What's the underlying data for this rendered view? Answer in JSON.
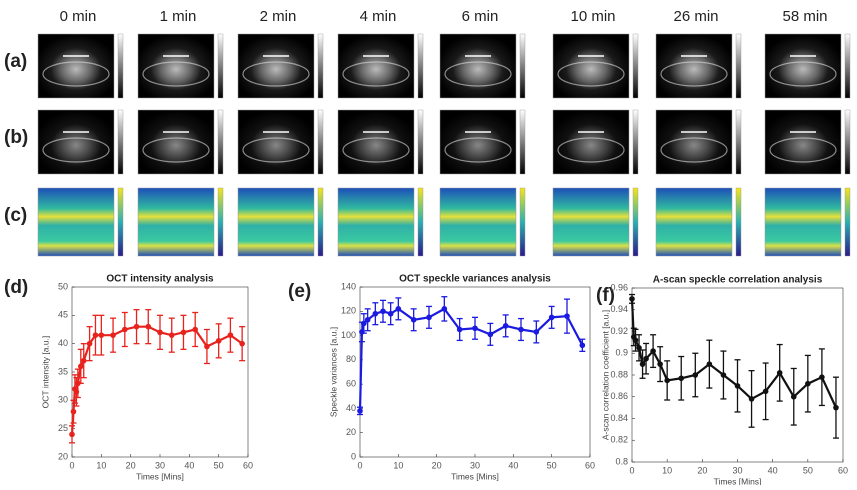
{
  "time_labels": [
    "0 min",
    "1 min",
    "2 min",
    "4 min",
    "6 min",
    "10 min",
    "26 min",
    "58 min"
  ],
  "panel_labels": [
    "(a)",
    "(b)",
    "(c)"
  ],
  "chart_data": [
    {
      "type": "line",
      "panel_label": "(d)",
      "title": "OCT intensity analysis",
      "xlabel": "Times [Mins]",
      "ylabel": "OCT intensity [a.u.]",
      "color": "#e8221c",
      "x": [
        0,
        0.5,
        1,
        1.5,
        2,
        3,
        4,
        6,
        8,
        10,
        14,
        18,
        22,
        26,
        30,
        34,
        38,
        42,
        46,
        50,
        54,
        58
      ],
      "values": [
        24,
        28,
        32,
        31.5,
        33,
        36,
        37,
        40,
        41.5,
        41.5,
        41.5,
        42.5,
        43,
        43,
        42,
        41.5,
        42,
        42.5,
        39.5,
        40.5,
        41.5,
        40
      ],
      "errors": [
        1.5,
        2,
        2.5,
        2.5,
        2.5,
        3,
        3,
        3,
        3.5,
        3.5,
        3,
        3,
        3,
        3,
        3,
        3,
        3,
        3,
        3,
        3,
        3,
        3
      ],
      "xlim": [
        0,
        60
      ],
      "xticks": [
        0,
        10,
        20,
        30,
        40,
        50,
        60
      ],
      "ylim": [
        20,
        50
      ],
      "yticks": [
        20,
        25,
        30,
        35,
        40,
        45,
        50
      ]
    },
    {
      "type": "line",
      "panel_label": "(e)",
      "title": "OCT speckle variances analysis",
      "xlabel": "Times [Mins]",
      "ylabel": "Speckle variances [a.u.]",
      "color": "#1a1ae0",
      "x": [
        0,
        0.5,
        1,
        2,
        4,
        6,
        8,
        10,
        14,
        18,
        22,
        26,
        30,
        34,
        38,
        42,
        46,
        50,
        54,
        58
      ],
      "values": [
        38,
        103,
        110,
        113,
        118,
        120,
        118,
        122,
        113,
        115,
        122,
        105,
        106,
        101,
        108,
        105,
        103,
        115,
        116,
        92
      ],
      "errors": [
        3,
        8,
        8,
        9,
        9,
        9,
        9,
        9,
        9,
        9,
        10,
        9,
        9,
        9,
        9,
        9,
        9,
        9,
        14,
        5
      ],
      "xlim": [
        0,
        60
      ],
      "xticks": [
        0,
        10,
        20,
        30,
        40,
        50,
        60
      ],
      "ylim": [
        0,
        140
      ],
      "yticks": [
        0,
        20,
        40,
        60,
        80,
        100,
        120,
        140
      ]
    },
    {
      "type": "line",
      "panel_label": "(f)",
      "title": "A-scan speckle correlation analysis",
      "xlabel": "Times [Mins]",
      "ylabel": "A-scan correlation coefficient [a.u.]",
      "color": "#111111",
      "x": [
        0,
        0.5,
        1,
        2,
        3,
        4,
        6,
        8,
        10,
        14,
        18,
        22,
        26,
        30,
        34,
        38,
        42,
        46,
        50,
        54,
        58
      ],
      "values": [
        0.95,
        0.915,
        0.912,
        0.905,
        0.89,
        0.895,
        0.902,
        0.89,
        0.875,
        0.877,
        0.88,
        0.89,
        0.88,
        0.87,
        0.858,
        0.865,
        0.882,
        0.86,
        0.872,
        0.878,
        0.85
      ],
      "errors": [
        0.004,
        0.008,
        0.01,
        0.012,
        0.013,
        0.014,
        0.015,
        0.016,
        0.018,
        0.02,
        0.02,
        0.022,
        0.022,
        0.024,
        0.026,
        0.026,
        0.026,
        0.026,
        0.026,
        0.026,
        0.028
      ],
      "xlim": [
        0,
        60
      ],
      "xticks": [
        0,
        10,
        20,
        30,
        40,
        50,
        60
      ],
      "ylim": [
        0.8,
        0.96
      ],
      "yticks": [
        0.8,
        0.82,
        0.84,
        0.86,
        0.88,
        0.9,
        0.92,
        0.94,
        0.96
      ]
    }
  ]
}
